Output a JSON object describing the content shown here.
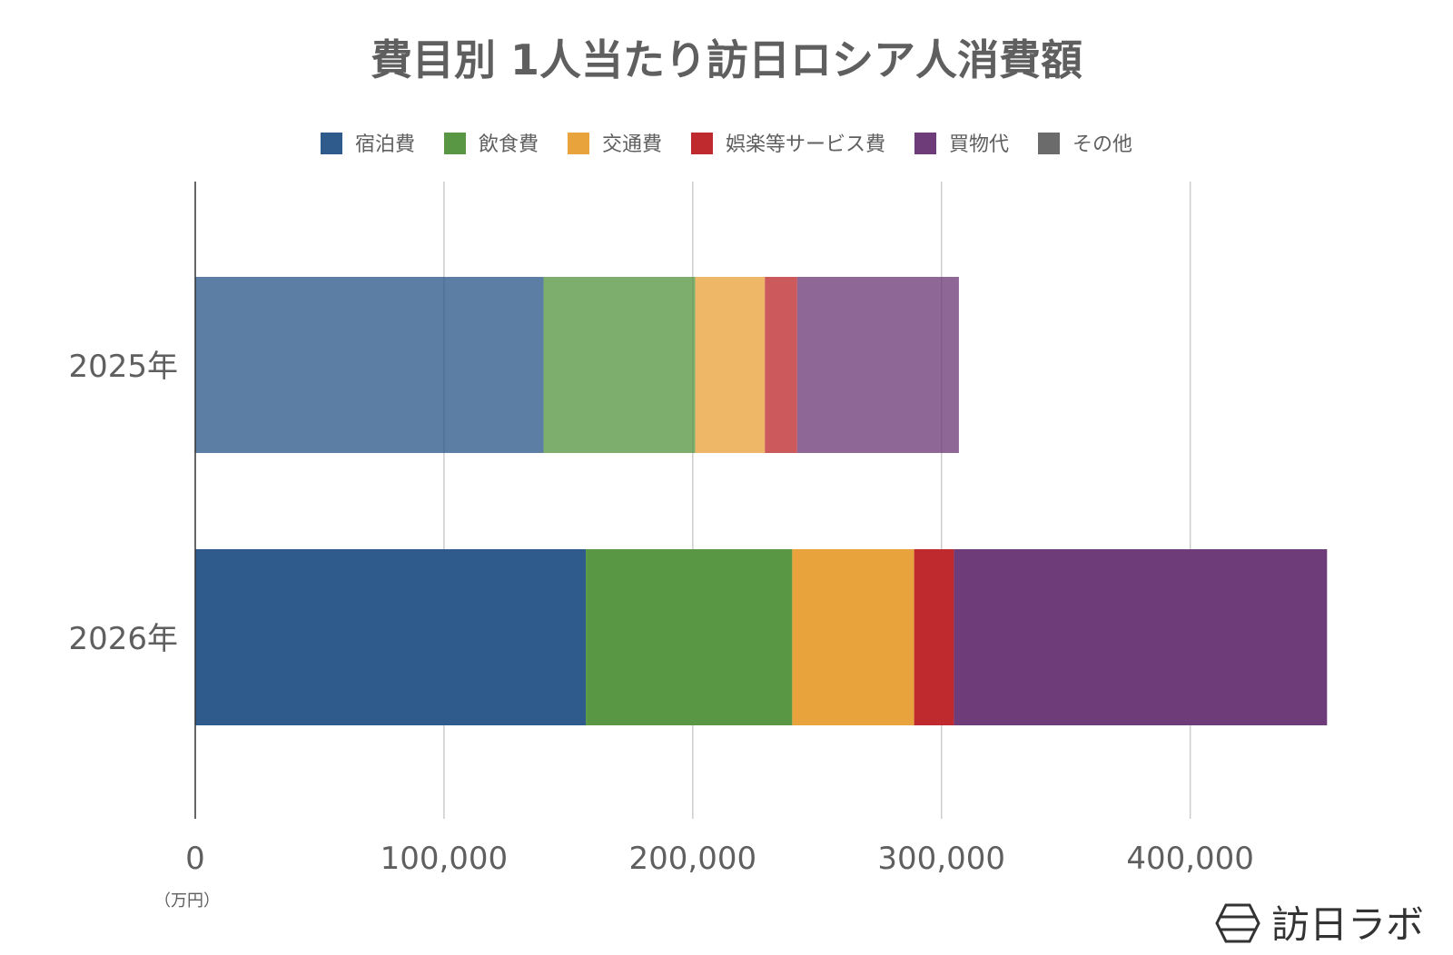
{
  "chart_data": {
    "type": "bar",
    "orientation": "horizontal",
    "stacked": true,
    "title": "費目別 1人当たり訪日ロシア人消費額",
    "unit_label": "（万円）",
    "categories": [
      "2025年",
      "2026年"
    ],
    "series": [
      {
        "name": "宿泊費",
        "color": "#2e5a8c",
        "values": [
          140000,
          157000
        ]
      },
      {
        "name": "飲食費",
        "color": "#5a9745",
        "values": [
          61000,
          83000
        ]
      },
      {
        "name": "交通費",
        "color": "#e8a33c",
        "values": [
          28000,
          49000
        ]
      },
      {
        "name": "娯楽等サービス費",
        "color": "#be2a2e",
        "values": [
          13000,
          16000
        ]
      },
      {
        "name": "買物代",
        "color": "#6e3c79",
        "values": [
          65000,
          150000
        ]
      },
      {
        "name": "その他",
        "color": "#6b6b6b",
        "values": [
          0,
          0
        ]
      }
    ],
    "faded_categories": [
      "2025年"
    ],
    "xlim": [
      0,
      460000
    ],
    "x_ticks": [
      0,
      100000,
      200000,
      300000,
      400000
    ],
    "x_tick_labels": [
      "0",
      "100,000",
      "200,000",
      "300,000",
      "400,000"
    ],
    "grid": true,
    "legend_position": "top"
  },
  "brand": {
    "logo_text": "訪日ラボ",
    "logo_icon": "hexagon-logo-icon"
  }
}
